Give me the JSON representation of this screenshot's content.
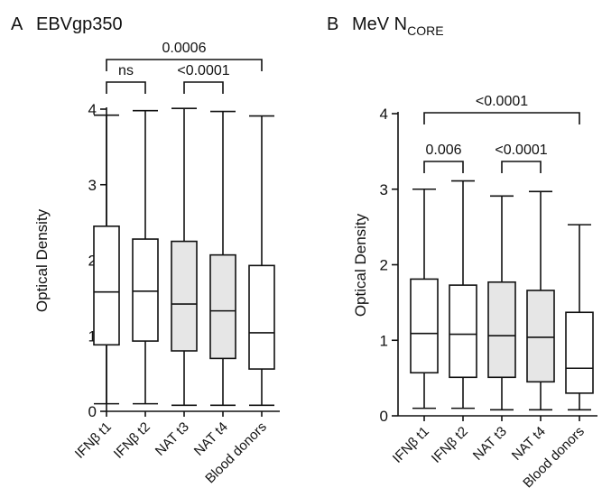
{
  "chart_data": [
    {
      "type": "box",
      "panel_letter": "A",
      "title": "EBVgp350",
      "title_sub": "",
      "ylabel": "Optical Density",
      "ylim": [
        0,
        4
      ],
      "yticks": [
        0,
        1,
        2,
        3,
        4
      ],
      "categories": [
        "IFNβ t1",
        "IFNβ t2",
        "NAT t3",
        "NAT t4",
        "Blood donors"
      ],
      "boxes": [
        {
          "min": 0.1,
          "q1": 0.88,
          "median": 1.58,
          "q3": 2.45,
          "max": 3.92,
          "fill": "#ffffff"
        },
        {
          "min": 0.1,
          "q1": 0.93,
          "median": 1.59,
          "q3": 2.28,
          "max": 3.98,
          "fill": "#ffffff"
        },
        {
          "min": 0.08,
          "q1": 0.8,
          "median": 1.42,
          "q3": 2.25,
          "max": 4.01,
          "fill": "#e6e6e6"
        },
        {
          "min": 0.08,
          "q1": 0.7,
          "median": 1.33,
          "q3": 2.07,
          "max": 3.97,
          "fill": "#e6e6e6"
        },
        {
          "min": 0.08,
          "q1": 0.56,
          "median": 1.04,
          "q3": 1.93,
          "max": 3.91,
          "fill": "#ffffff"
        }
      ],
      "comparisons": [
        {
          "from": 0,
          "to": 1,
          "label": "ns",
          "level": 1
        },
        {
          "from": 2,
          "to": 3,
          "label": "<0.0001",
          "level": 1
        },
        {
          "from": 0,
          "to": 4,
          "label": "0.0006",
          "level": 2
        }
      ]
    },
    {
      "type": "box",
      "panel_letter": "B",
      "title": "MeV N",
      "title_sub": "CORE",
      "ylabel": "Optical Density",
      "ylim": [
        0,
        4
      ],
      "yticks": [
        0,
        1,
        2,
        3,
        4
      ],
      "categories": [
        "IFNβ t1",
        "IFNβ t2",
        "NAT t3",
        "NAT t4",
        "Blood donors"
      ],
      "boxes": [
        {
          "min": 0.1,
          "q1": 0.57,
          "median": 1.09,
          "q3": 1.81,
          "max": 3.0,
          "fill": "#ffffff"
        },
        {
          "min": 0.1,
          "q1": 0.51,
          "median": 1.08,
          "q3": 1.73,
          "max": 3.11,
          "fill": "#ffffff"
        },
        {
          "min": 0.08,
          "q1": 0.51,
          "median": 1.06,
          "q3": 1.77,
          "max": 2.91,
          "fill": "#e6e6e6"
        },
        {
          "min": 0.08,
          "q1": 0.45,
          "median": 1.04,
          "q3": 1.66,
          "max": 2.97,
          "fill": "#e6e6e6"
        },
        {
          "min": 0.08,
          "q1": 0.3,
          "median": 0.63,
          "q3": 1.37,
          "max": 2.53,
          "fill": "#ffffff"
        }
      ],
      "comparisons": [
        {
          "from": 0,
          "to": 1,
          "label": "0.006",
          "level": 1
        },
        {
          "from": 2,
          "to": 3,
          "label": "<0.0001",
          "level": 1
        },
        {
          "from": 0,
          "to": 4,
          "label": "<0.0001",
          "level": 2
        }
      ]
    }
  ]
}
